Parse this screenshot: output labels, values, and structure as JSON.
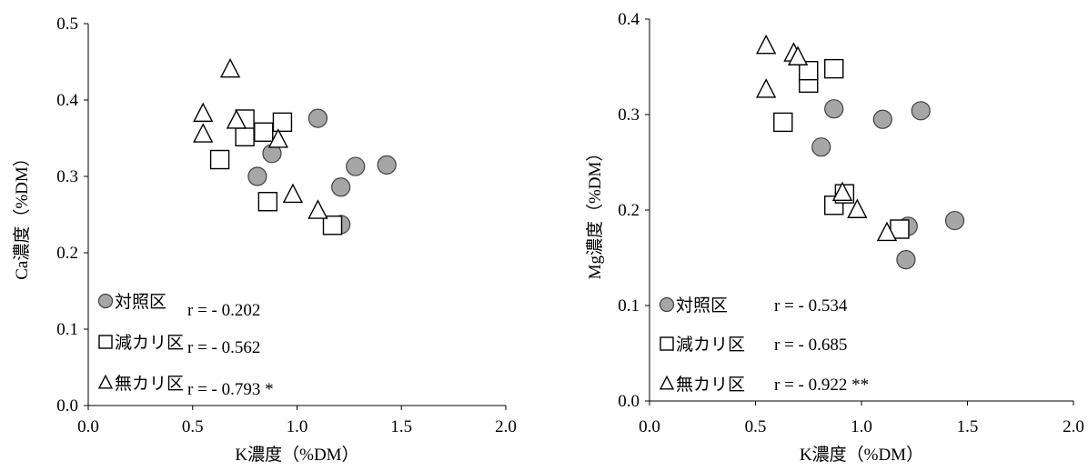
{
  "chart_data": [
    {
      "type": "scatter",
      "xlabel": "K濃度（%DM）",
      "ylabel": "Ca濃度（%DM）",
      "xlim": [
        0.0,
        2.0
      ],
      "ylim": [
        0.0,
        0.5
      ],
      "xticks": [
        "0.0",
        "0.5",
        "1.0",
        "1.5",
        "2.0"
      ],
      "yticks": [
        "0.0",
        "0.1",
        "0.2",
        "0.3",
        "0.4",
        "0.5"
      ],
      "grid": false,
      "legend_position": "bottom-left",
      "series": [
        {
          "name": "対照区",
          "marker": "circle",
          "stat": "r = - 0.202",
          "points": [
            [
              0.81,
              0.3
            ],
            [
              0.88,
              0.33
            ],
            [
              1.1,
              0.376
            ],
            [
              1.21,
              0.237
            ],
            [
              1.21,
              0.286
            ],
            [
              1.28,
              0.313
            ],
            [
              1.43,
              0.315
            ]
          ]
        },
        {
          "name": "減カリ区",
          "marker": "square",
          "stat": "r = - 0.562",
          "points": [
            [
              0.63,
              0.322
            ],
            [
              0.75,
              0.352
            ],
            [
              0.75,
              0.375
            ],
            [
              0.84,
              0.358
            ],
            [
              0.86,
              0.267
            ],
            [
              0.93,
              0.371
            ],
            [
              1.17,
              0.236
            ]
          ]
        },
        {
          "name": "無カリ区",
          "marker": "triangle",
          "stat": "r = - 0.793 *",
          "points": [
            [
              0.55,
              0.382
            ],
            [
              0.55,
              0.355
            ],
            [
              0.68,
              0.44
            ],
            [
              0.71,
              0.373
            ],
            [
              0.91,
              0.348
            ],
            [
              0.98,
              0.276
            ],
            [
              1.1,
              0.255
            ]
          ]
        }
      ]
    },
    {
      "type": "scatter",
      "xlabel": "K濃度（%DM）",
      "ylabel": "Mg濃度（%DM）",
      "xlim": [
        0.0,
        2.0
      ],
      "ylim": [
        0.0,
        0.4
      ],
      "xticks": [
        "0.0",
        "0.5",
        "1.0",
        "1.5",
        "2.0"
      ],
      "yticks": [
        "0.0",
        "0.1",
        "0.2",
        "0.3",
        "0.4"
      ],
      "grid": false,
      "legend_position": "bottom-left",
      "series": [
        {
          "name": "対照区",
          "marker": "circle",
          "stat": "r = - 0.534",
          "points": [
            [
              0.81,
              0.266
            ],
            [
              0.87,
              0.306
            ],
            [
              1.1,
              0.295
            ],
            [
              1.21,
              0.148
            ],
            [
              1.22,
              0.183
            ],
            [
              1.28,
              0.304
            ],
            [
              1.44,
              0.189
            ]
          ]
        },
        {
          "name": "減カリ区",
          "marker": "square",
          "stat": "r = - 0.685",
          "points": [
            [
              0.63,
              0.292
            ],
            [
              0.75,
              0.333
            ],
            [
              0.75,
              0.346
            ],
            [
              0.87,
              0.348
            ],
            [
              0.87,
              0.205
            ],
            [
              0.92,
              0.217
            ],
            [
              1.18,
              0.18
            ]
          ]
        },
        {
          "name": "無カリ区",
          "marker": "triangle",
          "stat": "r = - 0.922 **",
          "points": [
            [
              0.55,
              0.372
            ],
            [
              0.55,
              0.326
            ],
            [
              0.68,
              0.364
            ],
            [
              0.7,
              0.36
            ],
            [
              0.91,
              0.218
            ],
            [
              0.98,
              0.2
            ],
            [
              1.12,
              0.176
            ]
          ]
        }
      ]
    }
  ]
}
